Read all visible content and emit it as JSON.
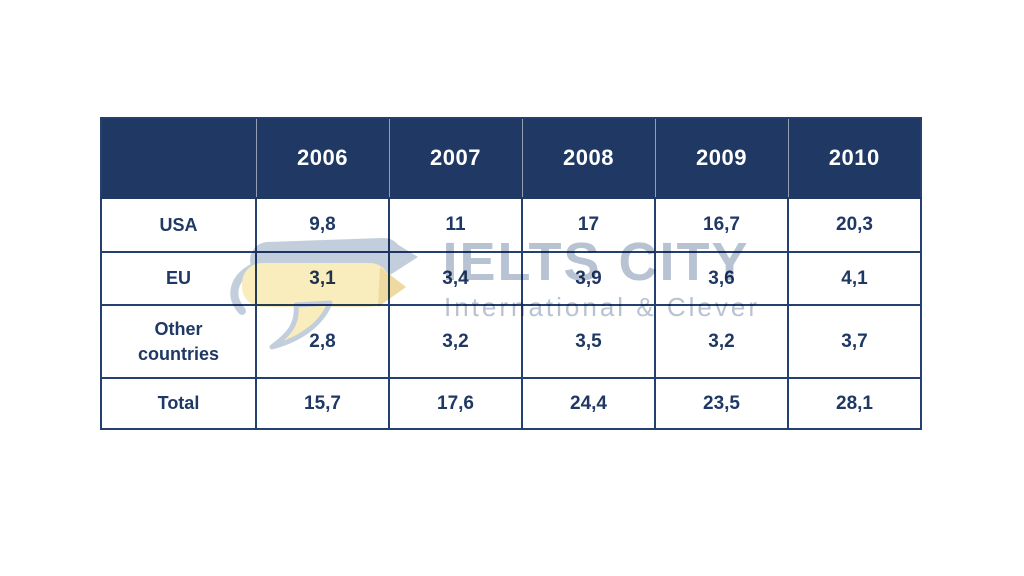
{
  "page": {
    "background_color": "#ffffff"
  },
  "table": {
    "corner_label": "",
    "year_columns": [
      "2006",
      "2007",
      "2008",
      "2009",
      "2010"
    ],
    "rows": [
      {
        "label": "USA",
        "values": [
          "9,8",
          "11",
          "17",
          "16,7",
          "20,3"
        ]
      },
      {
        "label": "EU",
        "values": [
          "3,1",
          "3,4",
          "3,9",
          "3,6",
          "4,1"
        ]
      },
      {
        "label": "Other countries",
        "values": [
          "2,8",
          "3,2",
          "3,5",
          "3,2",
          "3,7"
        ]
      },
      {
        "label": "Total",
        "values": [
          "15,7",
          "17,6",
          "24,4",
          "23,5",
          "28,1"
        ]
      }
    ],
    "colors": {
      "header_bg": "#1f3864",
      "header_text": "#ffffff",
      "cell_text": "#1f3864",
      "grid_border": "#24406e",
      "header_divider": "#93a0b4"
    }
  },
  "chart_data": {
    "type": "table",
    "categories": [
      "2006",
      "2007",
      "2008",
      "2009",
      "2010"
    ],
    "series": [
      {
        "name": "USA",
        "values": [
          9.8,
          11,
          17,
          16.7,
          20.3
        ]
      },
      {
        "name": "EU",
        "values": [
          3.1,
          3.4,
          3.9,
          3.6,
          4.1
        ]
      },
      {
        "name": "Other countries",
        "values": [
          2.8,
          3.2,
          3.5,
          3.2,
          3.7
        ]
      },
      {
        "name": "Total",
        "values": [
          15.7,
          17.6,
          24.4,
          23.5,
          28.1
        ]
      }
    ],
    "decimal_separator": ","
  },
  "watermark": {
    "title": "IELTS CITY",
    "subtitle": "International & Clever",
    "text_color": "#b7c3d3",
    "logo_bubble_color": "#f9edbd",
    "logo_shadow_color": "#c3cedd"
  }
}
